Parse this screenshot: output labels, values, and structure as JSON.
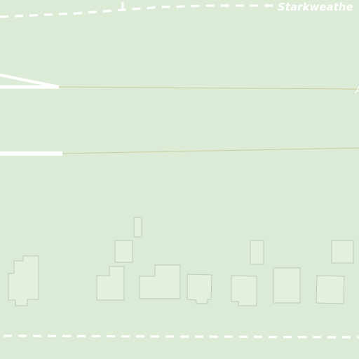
{
  "map": {
    "background_color": "#dcebd6",
    "street_labels": {
      "top": "Starkweathe"
    },
    "colors": {
      "building_fill": "#e4efe0",
      "building_stroke": "#b9cdb6",
      "path": "#ffffff",
      "thin_line": "#c9cd9a"
    }
  }
}
